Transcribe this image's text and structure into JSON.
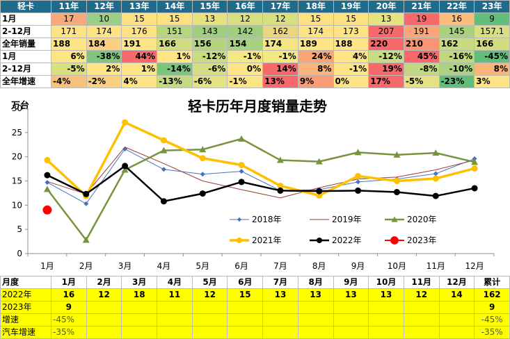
{
  "top_table": {
    "header": [
      "轻卡",
      "11年",
      "12年",
      "13年",
      "14年",
      "15年",
      "16年",
      "17年",
      "18年",
      "19年",
      "20年",
      "21年",
      "22年",
      "23年"
    ],
    "rows": [
      {
        "label": "1月",
        "align": "c",
        "cells": [
          "17",
          "10",
          "15",
          "15",
          "13",
          "12",
          "12",
          "15",
          "15",
          "13",
          "19",
          "16",
          "9"
        ],
        "colors": [
          "#f6a97b",
          "#9bcf87",
          "#fde080",
          "#fde080",
          "#e6e280",
          "#d8df81",
          "#d8df81",
          "#fde080",
          "#fde080",
          "#e6e280",
          "#f8696b",
          "#fbbd7b",
          "#63be7b"
        ]
      },
      {
        "label": "2-12月",
        "align": "c",
        "cells": [
          "171",
          "174",
          "176",
          "151",
          "143",
          "142",
          "162",
          "174",
          "173",
          "207",
          "191",
          "145",
          "157.1"
        ],
        "colors": [
          "#fde383",
          "#fde383",
          "#fde383",
          "#b7d680",
          "#9fcf7e",
          "#9dcf7e",
          "#ead581",
          "#fde383",
          "#fde383",
          "#f8696b",
          "#fba678",
          "#a7d17f",
          "#d7df82"
        ]
      },
      {
        "label": "全年销量",
        "align": "l",
        "cells": [
          "188",
          "184",
          "191",
          "166",
          "156",
          "154",
          "174",
          "189",
          "188",
          "220",
          "210",
          "162",
          "166"
        ],
        "colors": [
          "#fde585",
          "#fcd080",
          "#fde585",
          "#d2dd82",
          "#b3d580",
          "#a8d27f",
          "#f6e683",
          "#fde585",
          "#fde585",
          "#f8696b",
          "#fa9473",
          "#c5da81",
          "#d2dd82"
        ]
      },
      {
        "label": "1月",
        "align": "r",
        "cells": [
          "6%",
          "-38%",
          "44%",
          "1%",
          "-12%",
          "-1%",
          "-1%",
          "24%",
          "4%",
          "-12%",
          "45%",
          "-16%",
          "-45%"
        ],
        "colors": [
          "#fde586",
          "#80c57d",
          "#f8696b",
          "#fde586",
          "#c8dc81",
          "#f4e884",
          "#f4e884",
          "#faa475",
          "#fde586",
          "#c8dc81",
          "#f8696b",
          "#bdd881",
          "#63be7b"
        ]
      },
      {
        "label": "2-12月",
        "align": "r",
        "cells": [
          "-5%",
          "2%",
          "1%",
          "-14%",
          "-6%",
          "0%",
          "14%",
          "8%",
          "-1%",
          "19%",
          "-8%",
          "-10%",
          "8%"
        ],
        "colors": [
          "#dae080",
          "#fde586",
          "#fde586",
          "#7dc47c",
          "#d3df82",
          "#fde586",
          "#f8696b",
          "#fbb479",
          "#fde586",
          "#f8696b",
          "#c2d981",
          "#aad381",
          "#fbb479"
        ]
      },
      {
        "label": "全年增速",
        "align": "l",
        "cells": [
          "-4%",
          "-2%",
          "4%",
          "-13%",
          "-6%",
          "-1%",
          "13%",
          "9%",
          "0%",
          "17%",
          "-5%",
          "-23%",
          "3%"
        ],
        "colors": [
          "#f8c27c",
          "#fbd080",
          "#fde586",
          "#c6db81",
          "#e5e283",
          "#fde586",
          "#f8696b",
          "#fa9d74",
          "#fde586",
          "#f8696b",
          "#e6e283",
          "#63be7b",
          "#fde586"
        ]
      }
    ]
  },
  "chart_data": {
    "type": "line",
    "title": "轻卡历年月度销量走势",
    "ylabel": "万台",
    "ylim": [
      0,
      30
    ],
    "yticks": [
      0,
      5,
      10,
      15,
      20,
      25,
      30
    ],
    "categories": [
      "1月",
      "2月",
      "3月",
      "4月",
      "5月",
      "6月",
      "7月",
      "8月",
      "9月",
      "10月",
      "11月",
      "12月"
    ],
    "grid": false,
    "legend_position": "bottom-right",
    "series": [
      {
        "name": "2018年",
        "color": "#4472c4",
        "marker": "diamond",
        "width": 1,
        "values": [
          14.7,
          10.3,
          21.6,
          17.4,
          16.4,
          17.0,
          13.0,
          13.2,
          14.8,
          15.4,
          16.5,
          19.6
        ]
      },
      {
        "name": "2019年",
        "color": "#9e3b35",
        "marker": "none",
        "width": 1,
        "values": [
          14.9,
          12.3,
          22.0,
          18.6,
          15.0,
          13.2,
          11.5,
          13.6,
          15.4,
          15.8,
          17.3,
          19.3
        ]
      },
      {
        "name": "2020年",
        "color": "#77933c",
        "marker": "triangle",
        "width": 2.5,
        "values": [
          13.3,
          2.8,
          17.3,
          21.3,
          21.5,
          23.7,
          19.3,
          19.0,
          20.9,
          20.4,
          20.8,
          18.9
        ]
      },
      {
        "name": "2021年",
        "color": "#ffc000",
        "marker": "circle",
        "width": 3.5,
        "values": [
          19.3,
          11.9,
          27.1,
          23.4,
          19.7,
          18.3,
          14.0,
          12.0,
          16.0,
          15.0,
          15.5,
          17.6
        ]
      },
      {
        "name": "2022年",
        "color": "#000000",
        "marker": "circle",
        "width": 2.5,
        "values": [
          16.2,
          12.3,
          18.1,
          10.8,
          12.4,
          14.8,
          13.0,
          12.9,
          13.0,
          12.7,
          11.9,
          13.5
        ]
      },
      {
        "name": "2023年",
        "color": "#ff0000",
        "marker": "circle",
        "width": 2,
        "values": [
          9.0,
          null,
          null,
          null,
          null,
          null,
          null,
          null,
          null,
          null,
          null,
          null
        ]
      }
    ]
  },
  "bottom_table": {
    "header": [
      "月度",
      "1月",
      "2月",
      "3月",
      "4月",
      "5月",
      "6月",
      "7月",
      "8月",
      "9月",
      "10月",
      "11月",
      "12月",
      "累计"
    ],
    "rows": [
      {
        "label": "2022年",
        "cells": [
          "16",
          "12",
          "18",
          "11",
          "12",
          "15",
          "13",
          "13",
          "13",
          "13",
          "12",
          "14",
          "162"
        ]
      },
      {
        "label": "2023年",
        "cells": [
          "9",
          "",
          "",
          "",
          "",
          "",
          "",
          "",
          "",
          "",
          "",
          "",
          "9"
        ]
      },
      {
        "label": "增速",
        "cells": [
          "-45%",
          "",
          "",
          "",
          "",
          "",
          "",
          "",
          "",
          "",
          "",
          "",
          "-45%"
        ]
      },
      {
        "label": "汽车增速",
        "cells": [
          "-35%",
          "",
          "",
          "",
          "",
          "",
          "",
          "",
          "",
          "",
          "",
          "",
          "-35%"
        ]
      }
    ]
  }
}
